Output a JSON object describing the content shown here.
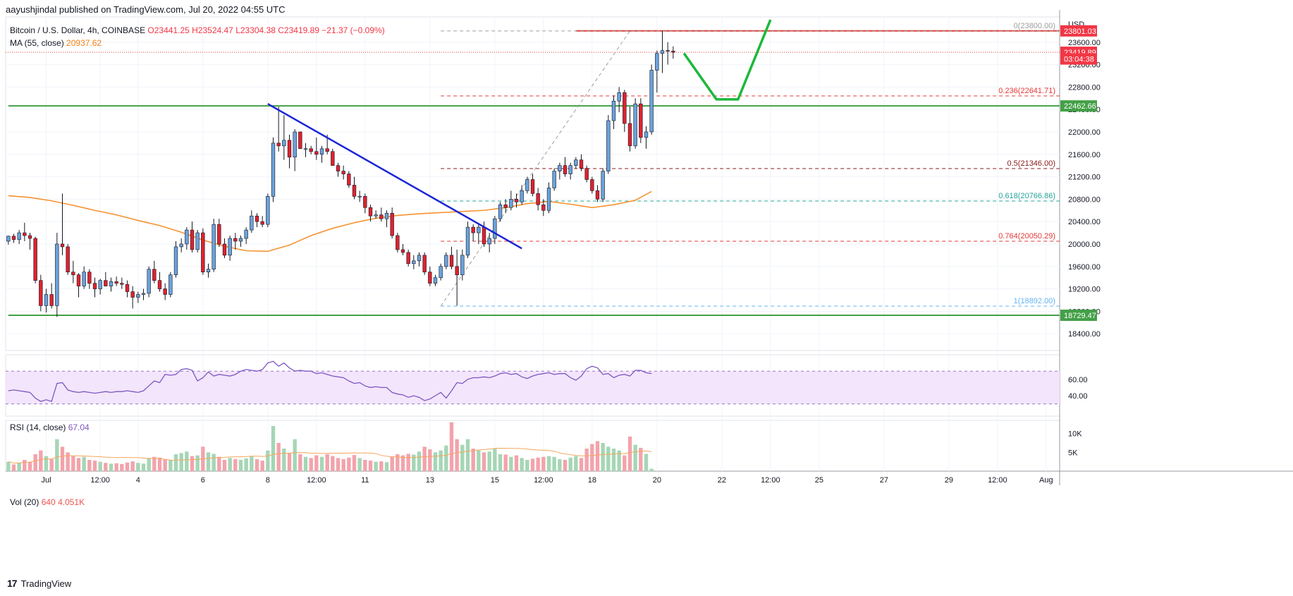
{
  "header": {
    "publisher": "aayushjindal published on TradingView.com, Jul 20, 2022 04:55 UTC"
  },
  "legend": {
    "symbol": "Bitcoin / U.S. Dollar, 4h, COINBASE",
    "ohlc": "O23441.25  H23524.47  L23304.38  C23419.89  −21.37 (−0.09%)",
    "ma_label": "MA (55, close)",
    "ma_value": "20937.62"
  },
  "rsi_legend": {
    "label": "RSI (14, close)",
    "value": "67.04"
  },
  "vol_legend": {
    "label": "Vol (20)",
    "value1": "640",
    "value2": "4.051K"
  },
  "footer": {
    "logo": "17",
    "brand": "TradingView"
  },
  "colors": {
    "up": "#6ba3dc",
    "down": "#e0212f",
    "ma": "#f59331",
    "resistance": "#e53935",
    "support": "#43a047",
    "trendline": "#1a26d6",
    "projection": "#1cb83a",
    "rsi": "#7e57c2",
    "rsi_band": "#f3e5fb",
    "vol_up": "#a5d6b5",
    "vol_down": "#f3a3ab"
  },
  "chart_data": {
    "type": "candlestick",
    "timeframe": "4h",
    "price_axis": {
      "unit": "USD",
      "ticks": [
        "18400.00",
        "18800.00",
        "19200.00",
        "19600.00",
        "20000.00",
        "20400.00",
        "20800.00",
        "21200.00",
        "21600.00",
        "22000.00",
        "22400.00",
        "22800.00",
        "23200.00",
        "23600.00"
      ],
      "ylim": [
        18100,
        24050
      ]
    },
    "time_axis": {
      "ticks": [
        {
          "label": "Jul",
          "bar": 7
        },
        {
          "label": "12:00",
          "bar": 17
        },
        {
          "label": "4",
          "bar": 24
        },
        {
          "label": "6",
          "bar": 36
        },
        {
          "label": "8",
          "bar": 48
        },
        {
          "label": "12:00",
          "bar": 57
        },
        {
          "label": "11",
          "bar": 66
        },
        {
          "label": "13",
          "bar": 78
        },
        {
          "label": "15",
          "bar": 90
        },
        {
          "label": "12:00",
          "bar": 99
        },
        {
          "label": "18",
          "bar": 108
        },
        {
          "label": "20",
          "bar": 120
        },
        {
          "label": "22",
          "bar": 132
        },
        {
          "label": "12:00",
          "bar": 141
        },
        {
          "label": "25",
          "bar": 150
        },
        {
          "label": "27",
          "bar": 162
        },
        {
          "label": "29",
          "bar": 174
        },
        {
          "label": "12:00",
          "bar": 183
        },
        {
          "label": "Aug",
          "bar": 192
        }
      ]
    },
    "price_labels": [
      {
        "text": "23801.03",
        "value": 23801.03,
        "kind": "resistance"
      },
      {
        "text": "23419.89",
        "value": 23419.89,
        "kind": "last"
      },
      {
        "text": "03:04:38",
        "value": 23300,
        "kind": "countdown"
      },
      {
        "text": "22462.66",
        "value": 22462.66,
        "kind": "support"
      },
      {
        "text": "18729.47",
        "value": 18729.47,
        "kind": "support"
      }
    ],
    "horizontal_levels": [
      {
        "name": "resistance",
        "value": 23801.03,
        "from_bar": 105
      },
      {
        "name": "support-upper",
        "value": 22462.66,
        "from_bar": 0
      },
      {
        "name": "support-lower",
        "value": 18729.47,
        "from_bar": 0
      }
    ],
    "fibonacci": {
      "from_bar": 80,
      "levels": [
        {
          "label": "0(23800.00)",
          "ratio": 0,
          "value": 23800.0,
          "color": "#9e9e9e"
        },
        {
          "label": "0.236(22641.71)",
          "ratio": 0.236,
          "value": 22641.71,
          "color": "#e53935"
        },
        {
          "label": "0.5(21346.00)",
          "ratio": 0.5,
          "value": 21346.0,
          "color": "#8d1a1a"
        },
        {
          "label": "0.618(20766.86)",
          "ratio": 0.618,
          "value": 20766.86,
          "color": "#26a69a"
        },
        {
          "label": "0.764(20050.29)",
          "ratio": 0.764,
          "value": 20050.29,
          "color": "#e53935"
        },
        {
          "label": "1(18892.00)",
          "ratio": 1,
          "value": 18892.0,
          "color": "#64b5f6"
        }
      ]
    },
    "fib_diagonal": {
      "from": [
        80,
        18892
      ],
      "to": [
        115,
        23800
      ]
    },
    "trendline": {
      "from": [
        48,
        22500
      ],
      "to": [
        95,
        19920
      ]
    },
    "projection_path": [
      [
        125,
        23400
      ],
      [
        131,
        22580
      ],
      [
        135,
        22580
      ],
      [
        141,
        24000
      ]
    ],
    "candles": [
      [
        20050,
        20150,
        19990,
        20140
      ],
      [
        20140,
        20180,
        20020,
        20080
      ],
      [
        20080,
        20250,
        20000,
        20200
      ],
      [
        20200,
        20380,
        20050,
        20150
      ],
      [
        20150,
        20200,
        19900,
        20100
      ],
      [
        20100,
        20130,
        19300,
        19350
      ],
      [
        19350,
        19450,
        18800,
        18900
      ],
      [
        18900,
        19200,
        18780,
        19100
      ],
      [
        19100,
        19300,
        18850,
        18900
      ],
      [
        18900,
        20200,
        18700,
        20000
      ],
      [
        20000,
        20900,
        19800,
        19950
      ],
      [
        19950,
        20000,
        19450,
        19500
      ],
      [
        19500,
        19700,
        19300,
        19450
      ],
      [
        19450,
        19480,
        19050,
        19250
      ],
      [
        19250,
        19600,
        19200,
        19500
      ],
      [
        19500,
        19550,
        19200,
        19300
      ],
      [
        19300,
        19400,
        19050,
        19200
      ],
      [
        19200,
        19380,
        19100,
        19350
      ],
      [
        19350,
        19500,
        19250,
        19250
      ],
      [
        19250,
        19400,
        19150,
        19330
      ],
      [
        19330,
        19420,
        19250,
        19300
      ],
      [
        19300,
        19400,
        19200,
        19280
      ],
      [
        19280,
        19350,
        19050,
        19150
      ],
      [
        19150,
        19250,
        18850,
        19050
      ],
      [
        19050,
        19150,
        18950,
        19100
      ],
      [
        19100,
        19200,
        19000,
        19120
      ],
      [
        19120,
        19600,
        19050,
        19550
      ],
      [
        19550,
        19700,
        19300,
        19350
      ],
      [
        19350,
        19500,
        19150,
        19200
      ],
      [
        19200,
        19300,
        19000,
        19100
      ],
      [
        19100,
        19500,
        19050,
        19450
      ],
      [
        19450,
        20050,
        19400,
        19950
      ],
      [
        19950,
        20100,
        19850,
        20000
      ],
      [
        20000,
        20300,
        19900,
        20250
      ],
      [
        20250,
        20400,
        19850,
        19900
      ],
      [
        19900,
        20250,
        19850,
        20200
      ],
      [
        20200,
        20280,
        19450,
        19500
      ],
      [
        19500,
        19650,
        19400,
        19550
      ],
      [
        19550,
        20450,
        19500,
        20350
      ],
      [
        20350,
        20450,
        19950,
        20000
      ],
      [
        20000,
        20100,
        19750,
        19800
      ],
      [
        19800,
        20150,
        19700,
        20100
      ],
      [
        20100,
        20200,
        19900,
        20050
      ],
      [
        20050,
        20150,
        19950,
        20100
      ],
      [
        20100,
        20300,
        20000,
        20250
      ],
      [
        20250,
        20600,
        20200,
        20500
      ],
      [
        20500,
        20550,
        20300,
        20400
      ],
      [
        20400,
        20500,
        20300,
        20350
      ],
      [
        20350,
        20900,
        20300,
        20850
      ],
      [
        20850,
        21900,
        20750,
        21800
      ],
      [
        21800,
        22450,
        21650,
        21750
      ],
      [
        21750,
        22300,
        21500,
        21850
      ],
      [
        21850,
        21950,
        21350,
        21550
      ],
      [
        21550,
        22050,
        21300,
        22000
      ],
      [
        22000,
        22000,
        21700,
        21700
      ],
      [
        21700,
        21800,
        21550,
        21700
      ],
      [
        21700,
        21750,
        21600,
        21650
      ],
      [
        21650,
        21900,
        21500,
        21600
      ],
      [
        21600,
        21750,
        21450,
        21700
      ],
      [
        21700,
        21950,
        21600,
        21650
      ],
      [
        21650,
        21700,
        21400,
        21400
      ],
      [
        21400,
        21450,
        21200,
        21300
      ],
      [
        21300,
        21400,
        21150,
        21250
      ],
      [
        21250,
        21300,
        21000,
        21050
      ],
      [
        21050,
        21200,
        20800,
        20850
      ],
      [
        20850,
        20950,
        20750,
        20850
      ],
      [
        20850,
        20900,
        20550,
        20650
      ],
      [
        20650,
        20700,
        20400,
        20500
      ],
      [
        20500,
        20600,
        20450,
        20520
      ],
      [
        20520,
        20650,
        20400,
        20450
      ],
      [
        20450,
        20600,
        20300,
        20550
      ],
      [
        20550,
        20650,
        20100,
        20150
      ],
      [
        20150,
        20200,
        19850,
        19900
      ],
      [
        19900,
        20000,
        19800,
        19850
      ],
      [
        19850,
        19900,
        19600,
        19650
      ],
      [
        19650,
        19800,
        19550,
        19700
      ],
      [
        19700,
        19850,
        19600,
        19800
      ],
      [
        19800,
        19850,
        19450,
        19500
      ],
      [
        19500,
        19600,
        19250,
        19300
      ],
      [
        19300,
        19450,
        19250,
        19400
      ],
      [
        19400,
        19650,
        19350,
        19600
      ],
      [
        19600,
        19850,
        19550,
        19800
      ],
      [
        19800,
        19950,
        19550,
        19600
      ],
      [
        19600,
        19900,
        18900,
        19450
      ],
      [
        19450,
        19900,
        19350,
        19800
      ],
      [
        19800,
        20400,
        19750,
        20300
      ],
      [
        20300,
        20350,
        20050,
        20200
      ],
      [
        20200,
        20350,
        20000,
        20300
      ],
      [
        20300,
        20400,
        19950,
        20000
      ],
      [
        20000,
        20200,
        19850,
        20100
      ],
      [
        20100,
        20500,
        20000,
        20450
      ],
      [
        20450,
        20750,
        20400,
        20700
      ],
      [
        20700,
        20800,
        20550,
        20650
      ],
      [
        20650,
        20950,
        20600,
        20800
      ],
      [
        20800,
        20900,
        20650,
        20750
      ],
      [
        20750,
        21050,
        20700,
        20950
      ],
      [
        20950,
        21200,
        20900,
        21150
      ],
      [
        21150,
        21250,
        20850,
        20900
      ],
      [
        20900,
        21000,
        20600,
        20700
      ],
      [
        20700,
        20800,
        20500,
        20600
      ],
      [
        20600,
        21100,
        20550,
        21000
      ],
      [
        21000,
        21350,
        20950,
        21300
      ],
      [
        21300,
        21450,
        21150,
        21400
      ],
      [
        21400,
        21550,
        21200,
        21250
      ],
      [
        21250,
        21450,
        21150,
        21400
      ],
      [
        21400,
        21550,
        21350,
        21500
      ],
      [
        21500,
        21600,
        21300,
        21350
      ],
      [
        21350,
        21400,
        21100,
        21150
      ],
      [
        21150,
        21200,
        20900,
        20950
      ],
      [
        20950,
        21050,
        20750,
        20800
      ],
      [
        20800,
        21350,
        20750,
        21300
      ],
      [
        21300,
        22300,
        21250,
        22200
      ],
      [
        22200,
        22650,
        22050,
        22550
      ],
      [
        22550,
        22800,
        22350,
        22700
      ],
      [
        22700,
        22750,
        22000,
        22150
      ],
      [
        22150,
        22450,
        21650,
        21750
      ],
      [
        21750,
        22600,
        21700,
        22500
      ],
      [
        22500,
        22600,
        21800,
        21900
      ],
      [
        21900,
        22100,
        21700,
        22000
      ],
      [
        22000,
        23200,
        21950,
        23100
      ],
      [
        23100,
        23450,
        22700,
        23400
      ],
      [
        23400,
        23800,
        23050,
        23450
      ],
      [
        23450,
        23600,
        23200,
        23440
      ],
      [
        23441.25,
        23524.47,
        23304.38,
        23419.89
      ]
    ],
    "ma55": [
      [
        0,
        20860
      ],
      [
        4,
        20830
      ],
      [
        8,
        20770
      ],
      [
        12,
        20690
      ],
      [
        16,
        20600
      ],
      [
        20,
        20520
      ],
      [
        24,
        20420
      ],
      [
        28,
        20330
      ],
      [
        32,
        20210
      ],
      [
        36,
        20070
      ],
      [
        40,
        19960
      ],
      [
        44,
        19880
      ],
      [
        48,
        19870
      ],
      [
        52,
        19980
      ],
      [
        56,
        20150
      ],
      [
        60,
        20280
      ],
      [
        64,
        20380
      ],
      [
        68,
        20460
      ],
      [
        72,
        20510
      ],
      [
        76,
        20540
      ],
      [
        80,
        20560
      ],
      [
        84,
        20580
      ],
      [
        88,
        20600
      ],
      [
        92,
        20650
      ],
      [
        96,
        20720
      ],
      [
        100,
        20760
      ],
      [
        104,
        20710
      ],
      [
        108,
        20650
      ],
      [
        112,
        20700
      ],
      [
        116,
        20780
      ],
      [
        119,
        20937.62
      ]
    ],
    "rsi": {
      "axis_ticks": [
        "40.00",
        "60.00"
      ],
      "band": [
        30,
        70
      ],
      "ylim": [
        15,
        90
      ],
      "values": [
        46,
        47,
        46,
        45,
        44,
        37,
        33,
        35,
        33,
        55,
        56,
        47,
        45,
        44,
        45,
        44,
        43,
        44,
        45,
        44,
        45,
        45,
        46,
        45,
        44,
        46,
        52,
        58,
        56,
        66,
        65,
        66,
        72,
        73,
        71,
        58,
        62,
        69,
        64,
        66,
        65,
        64,
        66,
        70,
        72,
        71,
        70,
        72,
        80,
        82,
        76,
        80,
        74,
        70,
        71,
        70,
        70,
        67,
        68,
        66,
        64,
        63,
        62,
        58,
        55,
        56,
        52,
        50,
        51,
        50,
        50,
        44,
        42,
        41,
        38,
        40,
        38,
        34,
        36,
        40,
        44,
        37,
        46,
        56,
        55,
        60,
        62,
        62,
        63,
        62,
        64,
        67,
        68,
        66,
        67,
        63,
        61,
        64,
        66,
        67,
        68,
        66,
        67,
        67,
        62,
        59,
        64,
        73,
        76,
        74,
        66,
        67,
        62,
        65,
        66,
        64,
        71,
        71,
        68,
        67.04
      ]
    },
    "volume": {
      "axis_ticks": [
        "5K",
        "10K"
      ],
      "ylim": [
        0,
        13500
      ],
      "values": [
        2500,
        1800,
        2200,
        3000,
        2500,
        4500,
        5500,
        4000,
        3200,
        8500,
        6500,
        5000,
        4000,
        3500,
        3800,
        3000,
        2800,
        2500,
        2200,
        2000,
        2100,
        1900,
        2300,
        2600,
        2200,
        2000,
        3500,
        3800,
        3600,
        3200,
        3000,
        4500,
        4800,
        5200,
        4000,
        4200,
        6500,
        5000,
        4600,
        3800,
        3000,
        3500,
        3200,
        3000,
        3400,
        4000,
        3200,
        2800,
        5500,
        12000,
        7500,
        6000,
        4800,
        8500,
        4500,
        3800,
        3500,
        4200,
        3800,
        4500,
        4000,
        3500,
        3200,
        3600,
        4300,
        3500,
        3000,
        2800,
        2500,
        2600,
        2400,
        3800,
        4500,
        4200,
        4600,
        4400,
        5200,
        6500,
        5800,
        5000,
        5500,
        6800,
        13000,
        8500,
        7000,
        8500,
        6000,
        5500,
        5000,
        5200,
        6000,
        4500,
        4400,
        3800,
        4200,
        3500,
        3000,
        3300,
        3600,
        3800,
        4000,
        3800,
        3200,
        3000,
        3600,
        4000,
        3500,
        6000,
        7200,
        8000,
        7500,
        6500,
        6000,
        5500,
        4200,
        9200,
        7000,
        6200,
        4600,
        640
      ]
    }
  }
}
